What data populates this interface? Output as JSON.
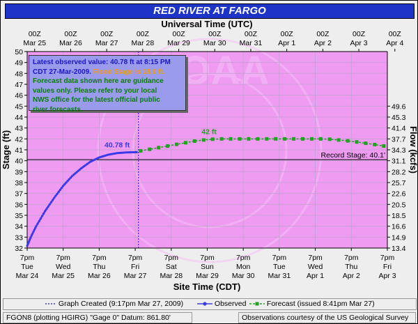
{
  "title": "RED RIVER  AT FARGO",
  "top_axis_title": "Universal Time (UTC)",
  "bottom_axis_title": "Site Time (CDT)",
  "left_axis_title": "Stage (ft)",
  "right_axis_title": "Flow (kcfs)",
  "notice": {
    "line1": "Latest observed value: 40.78 ft at 8:15 PM",
    "line2a": "CDT 27-Mar-2009.",
    "line2b": " Flood Stage is 18.0 ft.",
    "line3": "Forecast data shown here are guidance",
    "line4": "values only. Please refer to your local",
    "line5": "NWS office for the latest official public",
    "line6": "river forecasts."
  },
  "legend": {
    "created": "Graph Created (9:17pm Mar 27, 2009)",
    "observed": "Observed",
    "forecast": "Forecast (issued 8:41pm Mar 27)"
  },
  "footer": {
    "left": "FGON8 (plotting HGIRG)  \"Gage 0\" Datum: 861.80'",
    "right": "Observations courtesy of the  US Geological Survey"
  },
  "colors": {
    "plot_bg": "#ef9bf2",
    "observed": "#3a3ae6",
    "forecast": "#1fa31f",
    "title_bar": "#1e34c8"
  },
  "chart_data": {
    "type": "line",
    "ylabel": "Stage (ft)",
    "y2label": "Flow (kcfs)",
    "xlabel": "Site Time (CDT)",
    "ylim": [
      32,
      50
    ],
    "y_ticks": [
      32,
      33,
      34,
      35,
      36,
      37,
      38,
      39,
      40,
      41,
      42,
      43,
      44,
      45,
      46,
      47,
      48,
      49,
      50
    ],
    "flow_ticks": [
      {
        "stage": 32,
        "label": "13.4"
      },
      {
        "stage": 33,
        "label": "14.9"
      },
      {
        "stage": 34,
        "label": "16.6"
      },
      {
        "stage": 35,
        "label": "18.5"
      },
      {
        "stage": 36,
        "label": "20.5"
      },
      {
        "stage": 37,
        "label": "22.6"
      },
      {
        "stage": 38,
        "label": "25.7"
      },
      {
        "stage": 39,
        "label": "28.2"
      },
      {
        "stage": 40,
        "label": "31.1"
      },
      {
        "stage": 41,
        "label": "34.3"
      },
      {
        "stage": 42,
        "label": "37.7"
      },
      {
        "stage": 43,
        "label": "41.4"
      },
      {
        "stage": 44,
        "label": "45.3"
      },
      {
        "stage": 45,
        "label": "49.6"
      }
    ],
    "x_unit": "days after 7pm CDT Mar 24",
    "xlim": [
      0,
      10
    ],
    "bottom_ticks": [
      {
        "time": "7pm",
        "day": "Tue",
        "date": "Mar 24"
      },
      {
        "time": "7pm",
        "day": "Wed",
        "date": "Mar 25"
      },
      {
        "time": "7pm",
        "day": "Thu",
        "date": "Mar 26"
      },
      {
        "time": "7pm",
        "day": "Fri",
        "date": "Mar 27"
      },
      {
        "time": "7pm",
        "day": "Sat",
        "date": "Mar 28"
      },
      {
        "time": "7pm",
        "day": "Sun",
        "date": "Mar 29"
      },
      {
        "time": "7pm",
        "day": "Mon",
        "date": "Mar 30"
      },
      {
        "time": "7pm",
        "day": "Tue",
        "date": "Mar 31"
      },
      {
        "time": "7pm",
        "day": "Wed",
        "date": "Apr 1"
      },
      {
        "time": "7pm",
        "day": "Thu",
        "date": "Apr 2"
      },
      {
        "time": "7pm",
        "day": "Fri",
        "date": "Apr 3"
      }
    ],
    "top_ticks": [
      {
        "time": "00Z",
        "date": "Mar 25"
      },
      {
        "time": "00Z",
        "date": "Mar 26"
      },
      {
        "time": "00Z",
        "date": "Mar 27"
      },
      {
        "time": "00Z",
        "date": "Mar 28"
      },
      {
        "time": "00Z",
        "date": "Mar 29"
      },
      {
        "time": "00Z",
        "date": "Mar 30"
      },
      {
        "time": "00Z",
        "date": "Mar 31"
      },
      {
        "time": "00Z",
        "date": "Apr 1"
      },
      {
        "time": "00Z",
        "date": "Apr 2"
      },
      {
        "time": "00Z",
        "date": "Apr 3"
      },
      {
        "time": "00Z",
        "date": "Apr 4"
      }
    ],
    "graph_created_x": 3.09,
    "record_stage": {
      "value": 40.1,
      "label": "Record Stage: 40.1'"
    },
    "series": [
      {
        "name": "Observed",
        "x": [
          0.0,
          0.1,
          0.25,
          0.5,
          0.75,
          1.0,
          1.25,
          1.5,
          1.75,
          2.0,
          2.25,
          2.5,
          2.75,
          3.0,
          3.05
        ],
        "y": [
          32.2,
          33.0,
          34.0,
          35.4,
          36.6,
          37.7,
          38.6,
          39.3,
          39.9,
          40.3,
          40.55,
          40.7,
          40.76,
          40.78,
          40.78
        ],
        "peak_label": "40.78 ft"
      },
      {
        "name": "Forecast",
        "x": [
          3.15,
          3.4,
          3.65,
          3.9,
          4.15,
          4.4,
          4.65,
          4.9,
          5.15,
          5.4,
          5.65,
          5.9,
          6.15,
          6.4,
          6.65,
          6.9,
          7.15,
          7.4,
          7.65,
          7.9,
          8.15,
          8.4,
          8.65,
          8.9,
          9.15,
          9.4,
          9.65,
          9.9
        ],
        "y": [
          40.9,
          41.05,
          41.2,
          41.35,
          41.5,
          41.65,
          41.8,
          41.9,
          41.97,
          42.0,
          42.0,
          42.0,
          42.0,
          42.0,
          42.0,
          42.0,
          42.0,
          42.0,
          42.0,
          42.0,
          42.0,
          41.97,
          41.9,
          41.82,
          41.72,
          41.6,
          41.48,
          41.35
        ],
        "peak_label": "42 ft"
      }
    ]
  }
}
